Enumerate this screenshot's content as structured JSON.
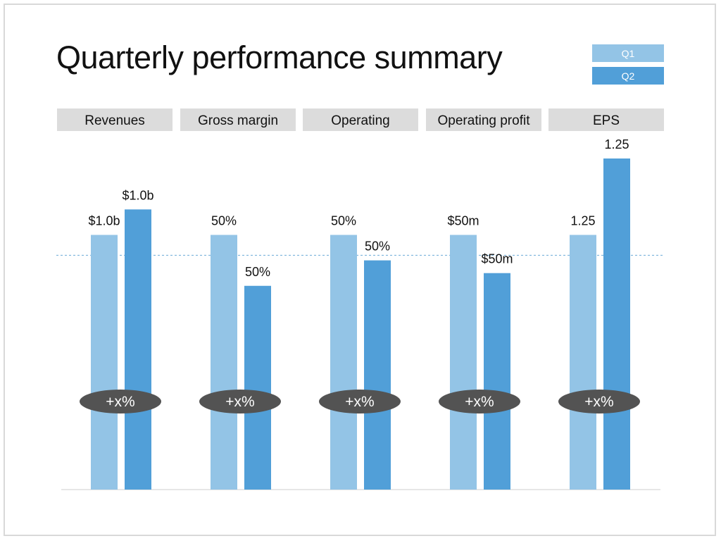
{
  "title": "Quarterly performance summary",
  "legend": [
    {
      "label": "Q1",
      "color": "#93c4e6"
    },
    {
      "label": "Q2",
      "color": "#519fd8"
    }
  ],
  "chart_data": {
    "type": "bar",
    "title": "Quarterly performance summary",
    "categories": [
      "Revenues",
      "Gross margin",
      "Operating",
      "Operating profit",
      "EPS"
    ],
    "series": [
      {
        "name": "Q1",
        "color": "#93c4e6",
        "values": [
          1.0,
          1.0,
          1.0,
          1.0,
          1.0
        ],
        "labels": [
          "$1.0b",
          "50%",
          "50%",
          "$50m",
          "1.25"
        ]
      },
      {
        "name": "Q2",
        "color": "#519fd8",
        "values": [
          1.1,
          0.8,
          0.9,
          0.85,
          1.3
        ],
        "labels": [
          "$1.0b",
          "50%",
          "50%",
          "$50m",
          "1.25"
        ]
      }
    ],
    "badges": [
      "+x%",
      "+x%",
      "+x%",
      "+x%",
      "+x%"
    ],
    "ylim": [
      0,
      1.3
    ],
    "reference_line": {
      "value": 0.92,
      "style": "dashed",
      "color": "#6aa9d8"
    },
    "grid": false,
    "legend_position": "top-right",
    "badge_color": "#535353"
  }
}
